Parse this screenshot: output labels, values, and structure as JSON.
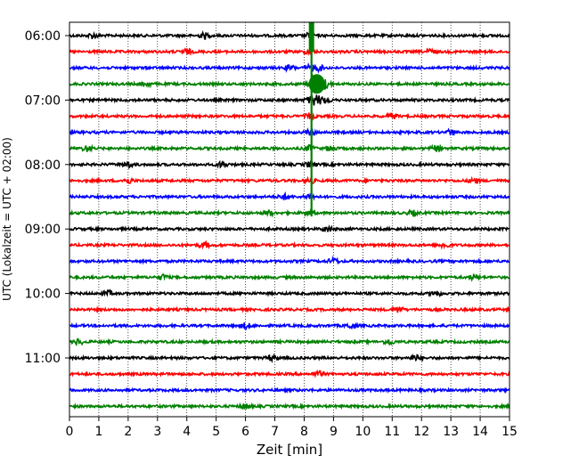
{
  "chart_data": {
    "type": "line",
    "title": "",
    "xlabel": "Zeit  [min]",
    "ylabel": "UTC (Lokalzeit = UTC + 02:00)",
    "xlim": [
      0,
      15
    ],
    "x_ticks": [
      "0",
      "1",
      "2",
      "3",
      "4",
      "5",
      "6",
      "7",
      "8",
      "9",
      "10",
      "11",
      "12",
      "13",
      "14",
      "15"
    ],
    "y_ticks": [
      {
        "label": "06:00",
        "row": 0
      },
      {
        "label": "07:00",
        "row": 4
      },
      {
        "label": "08:00",
        "row": 8
      },
      {
        "label": "09:00",
        "row": 12
      },
      {
        "label": "10:00",
        "row": 16
      },
      {
        "label": "11:00",
        "row": 20
      }
    ],
    "trace_minutes": 15,
    "trace_colors": [
      "#000000",
      "#ff0000",
      "#0000ff",
      "#008000"
    ],
    "grid": "vertical dotted at each minute",
    "series": [
      {
        "start": "06:00",
        "bursts": [
          0.8,
          4.6,
          8.2
        ]
      },
      {
        "start": "06:15",
        "bursts": [
          4.0,
          8.2,
          12.3
        ]
      },
      {
        "start": "06:30",
        "bursts": [
          7.5,
          8.2,
          8.5
        ]
      },
      {
        "start": "06:45",
        "bursts": [
          2.6,
          8.2,
          8.6
        ]
      },
      {
        "start": "07:00",
        "bursts": [
          8.2
        ]
      },
      {
        "start": "07:15",
        "bursts": [
          8.2,
          11.0
        ]
      },
      {
        "start": "07:30",
        "bursts": [
          8.2,
          13.0
        ]
      },
      {
        "start": "07:45",
        "bursts": [
          0.6,
          8.2,
          8.9,
          12.5
        ]
      },
      {
        "start": "08:00",
        "bursts": [
          2.0,
          5.2,
          8.2
        ]
      },
      {
        "start": "08:15",
        "bursts": [
          2.0,
          8.2,
          13.8
        ]
      },
      {
        "start": "08:30",
        "bursts": [
          7.3,
          8.2
        ]
      },
      {
        "start": "08:45",
        "bursts": [
          6.8,
          8.2,
          11.7
        ]
      },
      {
        "start": "09:00",
        "bursts": [
          8.8
        ]
      },
      {
        "start": "09:15",
        "bursts": [
          4.6,
          12.8
        ]
      },
      {
        "start": "09:30",
        "bursts": [
          9.0
        ]
      },
      {
        "start": "09:45",
        "bursts": [
          3.2,
          13.8
        ]
      },
      {
        "start": "10:00",
        "bursts": [
          1.3,
          12.5
        ]
      },
      {
        "start": "10:15",
        "bursts": [
          11.2
        ]
      },
      {
        "start": "10:30",
        "bursts": [
          6.0,
          9.6
        ]
      },
      {
        "start": "10:45",
        "bursts": [
          0.3,
          10.9
        ]
      },
      {
        "start": "11:00",
        "bursts": [
          6.9,
          11.8
        ]
      },
      {
        "start": "11:15",
        "bursts": [
          8.5
        ]
      },
      {
        "start": "11:30",
        "bursts": []
      },
      {
        "start": "11:45",
        "bursts": [
          6.0
        ]
      }
    ],
    "event": {
      "minute": 8.25,
      "first_row": 0,
      "last_row": 11
    }
  }
}
